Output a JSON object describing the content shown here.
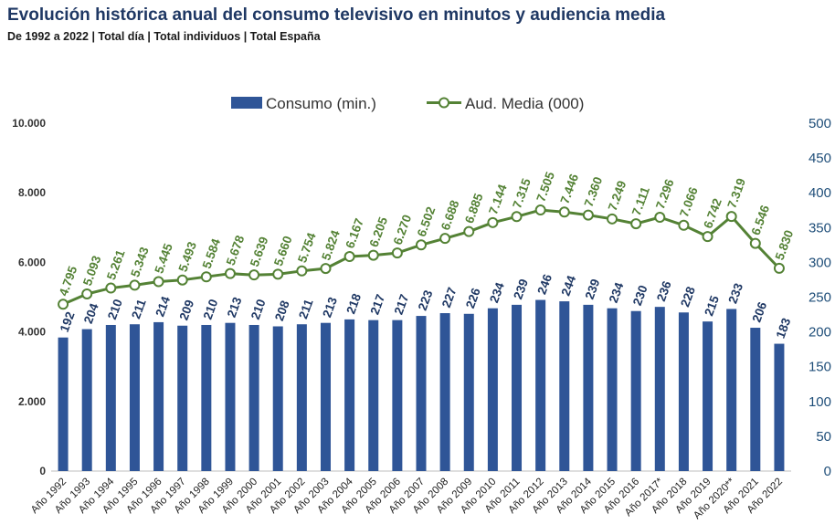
{
  "header": {
    "title": "Evolución histórica anual del consumo televisivo en minutos y audiencia media",
    "subtitle": "De 1992 a 2022 | Total día | Total individuos | Total España"
  },
  "chart_data": {
    "type": "bar",
    "title": "Evolución histórica anual del consumo televisivo en minutos y audiencia media",
    "subtitle": "De 1992 a 2022 | Total día | Total individuos | Total España",
    "categories": [
      "Año 1992",
      "Año 1993",
      "Año 1994",
      "Año 1995",
      "Año 1996",
      "Año 1997",
      "Año 1998",
      "Año 1999",
      "Año 2000",
      "Año 2001",
      "Año 2002",
      "Año 2003",
      "Año 2004",
      "Año 2005",
      "Año 2006",
      "Año 2007",
      "Año 2008",
      "Año 2009",
      "Año 2010",
      "Año 2011",
      "Año 2012",
      "Año 2013",
      "Año 2014",
      "Año 2015",
      "Año 2016",
      "Año 2017*",
      "Año 2018",
      "Año 2019",
      "Año 2020**",
      "Año 2021",
      "Año 2022"
    ],
    "series": [
      {
        "name": "Consumo (min.)",
        "type": "bar",
        "axis": "right",
        "color": "#2f5597",
        "values": [
          192,
          204,
          210,
          211,
          214,
          209,
          210,
          213,
          210,
          208,
          211,
          213,
          218,
          217,
          217,
          223,
          227,
          226,
          234,
          239,
          246,
          244,
          239,
          234,
          230,
          236,
          228,
          215,
          233,
          206,
          183
        ]
      },
      {
        "name": "Aud. Media (000)",
        "type": "line",
        "axis": "left",
        "color": "#548235",
        "values": [
          4795,
          5093,
          5261,
          5343,
          5445,
          5493,
          5584,
          5678,
          5639,
          5660,
          5754,
          5824,
          6167,
          6205,
          6270,
          6502,
          6688,
          6885,
          7144,
          7315,
          7505,
          7446,
          7360,
          7249,
          7111,
          7296,
          7066,
          6742,
          7319,
          6546,
          5830
        ],
        "labels": [
          "4.795",
          "5.093",
          "5.261",
          "5.343",
          "5.445",
          "5.493",
          "5.584",
          "5.678",
          "5.639",
          "5.660",
          "5.754",
          "5.824",
          "6.167",
          "6.205",
          "6.270",
          "6.502",
          "6.688",
          "6.885",
          "7.144",
          "7.315",
          "7.505",
          "7.446",
          "7.360",
          "7.249",
          "7.111",
          "7.296",
          "7.066",
          "6.742",
          "7.319",
          "6.546",
          "5.830"
        ]
      }
    ],
    "y_left": {
      "ylim": [
        0,
        10000
      ],
      "ticks": [
        0,
        2000,
        4000,
        6000,
        8000,
        10000
      ],
      "tick_labels": [
        "0",
        "2.000",
        "4.000",
        "6.000",
        "8.000",
        "10.000"
      ]
    },
    "y_right": {
      "ylim": [
        0,
        500
      ],
      "ticks": [
        0,
        50,
        100,
        150,
        200,
        250,
        300,
        350,
        400,
        450,
        500
      ],
      "tick_labels": [
        "0",
        "50",
        "100",
        "150",
        "200",
        "250",
        "300",
        "350",
        "400",
        "450",
        "500"
      ]
    },
    "grid": false,
    "legend_position": "top-center"
  }
}
